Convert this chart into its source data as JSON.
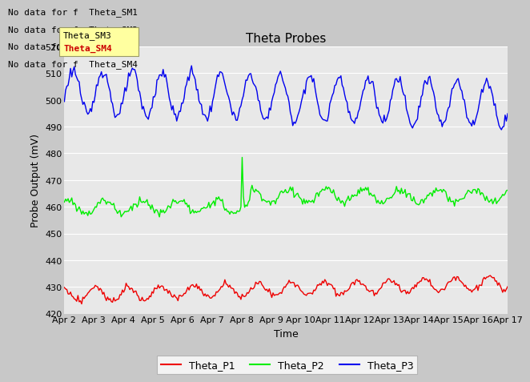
{
  "title": "Theta Probes",
  "xlabel": "Time",
  "ylabel": "Probe Output (mV)",
  "ylim": [
    420,
    520
  ],
  "yticks": [
    420,
    430,
    440,
    450,
    460,
    470,
    480,
    490,
    500,
    510,
    520
  ],
  "x_labels": [
    "Apr 2",
    "Apr 3",
    "Apr 4",
    "Apr 5",
    "Apr 6",
    "Apr 7",
    "Apr 8",
    "Apr 9",
    "Apr 10",
    "Apr 11",
    "Apr 12",
    "Apr 13",
    "Apr 14",
    "Apr 15",
    "Apr 16",
    "Apr 17"
  ],
  "no_data_texts": [
    "No data for f  Theta_SM1",
    "No data for f  Theta_SM2",
    "No data for f  Theta_SM3",
    "No data for f  Theta_SM4"
  ],
  "legend_entries": [
    "Theta_P1",
    "Theta_P2",
    "Theta_P3"
  ],
  "legend_colors": [
    "#ff0000",
    "#00cc00",
    "#0000ff"
  ],
  "fig_bg_color": "#c8c8c8",
  "plot_bg_color": "#e8e8e8",
  "grid_color": "#ffffff",
  "title_fontsize": 11,
  "axis_label_fontsize": 9,
  "tick_fontsize": 8,
  "no_data_fontsize": 8,
  "legend_fontsize": 9
}
